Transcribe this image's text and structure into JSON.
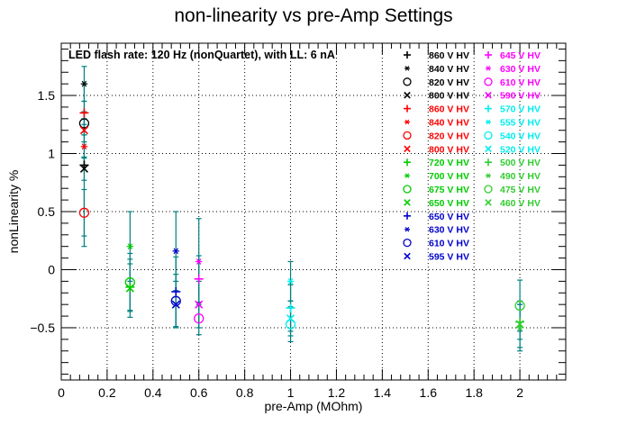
{
  "chart_data": {
    "type": "scatter",
    "title": "non-linearity vs pre-Amp Settings",
    "xlabel": "pre-Amp (MOhm)",
    "ylabel": "nonLinearity %",
    "annotation": "LED flash rate: 120 Hz  (nonQuartet), with LL: 6 nA",
    "xlim": [
      0,
      2.2
    ],
    "ylim": [
      -0.95,
      1.95
    ],
    "xticks": [
      "0",
      "0.2",
      "0.4",
      "0.6",
      "0.8",
      "1",
      "1.2",
      "1.4",
      "1.6",
      "1.8",
      "2"
    ],
    "yticks": [
      "−0.5",
      "0",
      "0.5",
      "1",
      "1.5"
    ],
    "grid": true,
    "legend_position": "top-right",
    "series": [
      {
        "name": "860 V HV",
        "color": "#000000",
        "marker": "plus",
        "x": 0.1,
        "y": 0.9,
        "err": 0.7
      },
      {
        "name": "840 V HV",
        "color": "#000000",
        "marker": "star",
        "x": 0.1,
        "y": 1.6,
        "err": 0.15
      },
      {
        "name": "820 V HV",
        "color": "#000000",
        "marker": "circle",
        "x": 0.1,
        "y": 1.26,
        "err": 0.1
      },
      {
        "name": "800 V HV",
        "color": "#000000",
        "marker": "cross",
        "x": 0.1,
        "y": 0.87,
        "err": 0.1
      },
      {
        "name": "860 V HV",
        "color": "#ff0000",
        "marker": "plus",
        "x": 0.1,
        "y": 1.35,
        "err": 0.1
      },
      {
        "name": "840 V HV",
        "color": "#ff0000",
        "marker": "star",
        "x": 0.1,
        "y": 1.06,
        "err": 0.1
      },
      {
        "name": "820 V HV",
        "color": "#ff0000",
        "marker": "circle",
        "x": 0.1,
        "y": 0.49,
        "err": 0.2
      },
      {
        "name": "800 V HV",
        "color": "#ff0000",
        "marker": "cross",
        "x": 0.1,
        "y": 1.2,
        "err": 0.1
      },
      {
        "name": "720 V HV",
        "color": "#00cc00",
        "marker": "plus",
        "x": 0.3,
        "y": -0.15,
        "err": 0.2
      },
      {
        "name": "700 V HV",
        "color": "#00cc00",
        "marker": "star",
        "x": 0.3,
        "y": 0.2,
        "err": 0.3
      },
      {
        "name": "675 V HV",
        "color": "#00cc00",
        "marker": "circle",
        "x": 0.3,
        "y": -0.11,
        "err": 0.25
      },
      {
        "name": "650 V HV",
        "color": "#00cc00",
        "marker": "cross",
        "x": 0.3,
        "y": -0.16,
        "err": 0.25
      },
      {
        "name": "650 V HV",
        "color": "#0000cc",
        "marker": "plus",
        "x": 0.5,
        "y": -0.19,
        "err": 0.3
      },
      {
        "name": "630 V HV",
        "color": "#0000cc",
        "marker": "star",
        "x": 0.5,
        "y": 0.16,
        "err": 0.34
      },
      {
        "name": "610 V HV",
        "color": "#0000cc",
        "marker": "circle",
        "x": 0.5,
        "y": -0.27,
        "err": 0.23
      },
      {
        "name": "595 V HV",
        "color": "#0000cc",
        "marker": "cross",
        "x": 0.5,
        "y": -0.3,
        "err": 0.2
      },
      {
        "name": "645 V HV",
        "color": "#ff00ff",
        "marker": "plus",
        "x": 0.6,
        "y": -0.08,
        "err": 0.2
      },
      {
        "name": "630 V HV",
        "color": "#ff00ff",
        "marker": "star",
        "x": 0.6,
        "y": 0.07,
        "err": 0.37
      },
      {
        "name": "610 V HV",
        "color": "#ff00ff",
        "marker": "circle",
        "x": 0.6,
        "y": -0.42,
        "err": 0.14
      },
      {
        "name": "590 V HV",
        "color": "#ff00ff",
        "marker": "cross",
        "x": 0.6,
        "y": -0.3,
        "err": 0.2
      },
      {
        "name": "570 V HV",
        "color": "#00eeee",
        "marker": "plus",
        "x": 1.0,
        "y": -0.33,
        "err": 0.2
      },
      {
        "name": "555 V HV",
        "color": "#00eeee",
        "marker": "star",
        "x": 1.0,
        "y": -0.1,
        "err": 0.17
      },
      {
        "name": "540 V HV",
        "color": "#00eeee",
        "marker": "circle",
        "x": 1.0,
        "y": -0.47,
        "err": 0.15
      },
      {
        "name": "520 V HV",
        "color": "#00eeee",
        "marker": "cross",
        "x": 1.0,
        "y": -0.42,
        "err": 0.15
      },
      {
        "name": "500 V HV",
        "color": "#33cc33",
        "marker": "plus",
        "x": 2.0,
        "y": -0.45,
        "err": 0.15
      },
      {
        "name": "490 V HV",
        "color": "#33cc33",
        "marker": "star",
        "x": 2.0,
        "y": -0.5,
        "err": 0.2
      },
      {
        "name": "475 V HV",
        "color": "#33cc33",
        "marker": "circle",
        "x": 2.0,
        "y": -0.31,
        "err": 0.22
      },
      {
        "name": "460 V HV",
        "color": "#33cc33",
        "marker": "cross",
        "x": 2.0,
        "y": -0.47,
        "err": 0.2
      }
    ]
  }
}
